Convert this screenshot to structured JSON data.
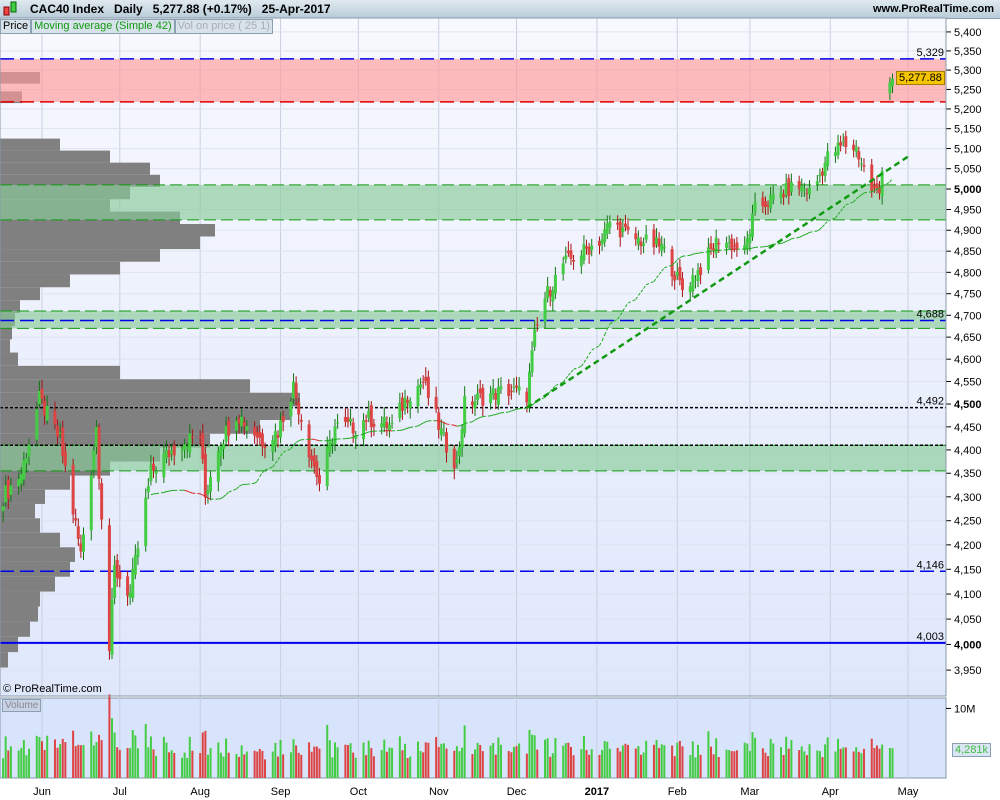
{
  "header": {
    "instrument": "CAC40 Index",
    "period": "Daily",
    "last": "5,277.88 (+0.17%)",
    "date": "25-Apr-2017",
    "site": "www.ProRealTime.com"
  },
  "legend": {
    "price": "Price",
    "ma": "Moving average (Simple 42)",
    "vop": "Vol on price ( 25 1)"
  },
  "copyright": "© ProRealTime.com",
  "volume_label": "Volume",
  "chart_data": {
    "type": "candlestick",
    "scale": "log",
    "ylim": [
      3900,
      5420
    ],
    "price_ticks": [
      3950,
      4000,
      4050,
      4100,
      4150,
      4200,
      4250,
      4300,
      4350,
      4400,
      4450,
      4500,
      4550,
      4600,
      4650,
      4700,
      4750,
      4800,
      4850,
      4900,
      4950,
      5000,
      5050,
      5100,
      5150,
      5200,
      5250,
      5300,
      5350,
      5400
    ],
    "price_tick_labels": [
      "3,950",
      "4,000",
      "4,050",
      "4,100",
      "4,150",
      "4,200",
      "4,250",
      "4,300",
      "4,350",
      "4,400",
      "4,450",
      "4,500",
      "4,550",
      "4,600",
      "4,650",
      "4,700",
      "4,750",
      "4,800",
      "4,850",
      "4,900",
      "4,950",
      "5,000",
      "5,050",
      "5,100",
      "5,150",
      "5,200",
      "5,250",
      "5,300",
      "5,350",
      "5,400"
    ],
    "x_labels": [
      {
        "date": "2016-06-01",
        "label": "Jun"
      },
      {
        "date": "2016-07-01",
        "label": "Jul"
      },
      {
        "date": "2016-08-01",
        "label": "Aug"
      },
      {
        "date": "2016-09-01",
        "label": "Sep"
      },
      {
        "date": "2016-10-01",
        "label": "Oct"
      },
      {
        "date": "2016-11-01",
        "label": "Nov"
      },
      {
        "date": "2016-12-01",
        "label": "Dec"
      },
      {
        "date": "2017-01-01",
        "label": "2017"
      },
      {
        "date": "2017-02-01",
        "label": "Feb"
      },
      {
        "date": "2017-03-01",
        "label": "Mar"
      },
      {
        "date": "2017-04-01",
        "label": "Apr"
      },
      {
        "date": "2017-05-01",
        "label": "May"
      }
    ],
    "close_keypoints": [
      [
        "2016-05-17",
        4300
      ],
      [
        "2016-05-24",
        4350
      ],
      [
        "2016-05-31",
        4510
      ],
      [
        "2016-06-08",
        4420
      ],
      [
        "2016-06-12",
        4300
      ],
      [
        "2016-06-16",
        4180
      ],
      [
        "2016-06-22",
        4450
      ],
      [
        "2016-06-27",
        3990
      ],
      [
        "2016-06-29",
        4150
      ],
      [
        "2016-07-05",
        4100
      ],
      [
        "2016-07-13",
        4350
      ],
      [
        "2016-07-17",
        4380
      ],
      [
        "2016-07-26",
        4420
      ],
      [
        "2016-08-01",
        4430
      ],
      [
        "2016-08-03",
        4300
      ],
      [
        "2016-08-07",
        4400
      ],
      [
        "2016-08-15",
        4480
      ],
      [
        "2016-08-25",
        4420
      ],
      [
        "2016-08-31",
        4440
      ],
      [
        "2016-09-06",
        4540
      ],
      [
        "2016-09-12",
        4400
      ],
      [
        "2016-09-16",
        4330
      ],
      [
        "2016-09-22",
        4450
      ],
      [
        "2016-09-30",
        4450
      ],
      [
        "2016-10-04",
        4470
      ],
      [
        "2016-10-14",
        4450
      ],
      [
        "2016-10-20",
        4520
      ],
      [
        "2016-10-26",
        4550
      ],
      [
        "2016-11-03",
        4420
      ],
      [
        "2016-11-08",
        4370
      ],
      [
        "2016-11-11",
        4500
      ],
      [
        "2016-11-20",
        4520
      ],
      [
        "2016-11-28",
        4530
      ],
      [
        "2016-12-05",
        4520
      ],
      [
        "2016-12-08",
        4650
      ],
      [
        "2016-12-12",
        4740
      ],
      [
        "2016-12-19",
        4820
      ],
      [
        "2016-12-27",
        4850
      ],
      [
        "2017-01-03",
        4880
      ],
      [
        "2017-01-06",
        4920
      ],
      [
        "2017-01-15",
        4880
      ],
      [
        "2017-01-26",
        4860
      ],
      [
        "2017-02-03",
        4760
      ],
      [
        "2017-02-10",
        4810
      ],
      [
        "2017-02-17",
        4880
      ],
      [
        "2017-02-27",
        4850
      ],
      [
        "2017-03-03",
        4950
      ],
      [
        "2017-03-11",
        4980
      ],
      [
        "2017-03-19",
        5010
      ],
      [
        "2017-03-25",
        4990
      ],
      [
        "2017-03-31",
        5080
      ],
      [
        "2017-04-06",
        5110
      ],
      [
        "2017-04-11",
        5100
      ],
      [
        "2017-04-17",
        5000
      ],
      [
        "2017-04-20",
        4990
      ],
      [
        "2017-04-24",
        5268
      ],
      [
        "2017-04-25",
        5277.88
      ]
    ],
    "moving_average": {
      "type": "Simple",
      "period": 42,
      "up_color": "#22aa22",
      "down_color": "#dd2222"
    },
    "levels": [
      {
        "price": 5329,
        "label": "5,329",
        "color": "#0000ee",
        "style": "dashed"
      },
      {
        "price": 5218,
        "label": "",
        "color": "#dd0000",
        "style": "dashed"
      },
      {
        "price": 4688,
        "label": "4,688",
        "color": "#0000ee",
        "style": "dashed"
      },
      {
        "price": 4492,
        "label": "4,492",
        "color": "#000000",
        "style": "dashed"
      },
      {
        "price": 4410,
        "label": "",
        "color": "#000000",
        "style": "dashed"
      },
      {
        "price": 4146,
        "label": "4,146",
        "color": "#0000ee",
        "style": "dashed"
      },
      {
        "price": 4003,
        "label": "4,003",
        "color": "#0000ee",
        "style": "solid"
      }
    ],
    "zones": [
      {
        "from": 5218,
        "to": 5329,
        "color": "#ff9999"
      },
      {
        "from": 4925,
        "to": 5010,
        "color": "#88cc99"
      },
      {
        "from": 4670,
        "to": 4710,
        "color": "#88cc99"
      },
      {
        "from": 4355,
        "to": 4410,
        "color": "#88cc99"
      }
    ],
    "trendline": {
      "from": [
        "2016-12-05",
        4492
      ],
      "to": [
        "2017-05-01",
        5080
      ],
      "color": "#119911"
    },
    "volume_profile": [
      [
        5280,
        40
      ],
      [
        5230,
        22
      ],
      [
        5110,
        60
      ],
      [
        5080,
        110
      ],
      [
        5050,
        150
      ],
      [
        5020,
        160
      ],
      [
        4990,
        130
      ],
      [
        4960,
        110
      ],
      [
        4930,
        180
      ],
      [
        4900,
        215
      ],
      [
        4870,
        200
      ],
      [
        4840,
        160
      ],
      [
        4810,
        120
      ],
      [
        4780,
        70
      ],
      [
        4750,
        40
      ],
      [
        4720,
        20
      ],
      [
        4690,
        15
      ],
      [
        4660,
        12
      ],
      [
        4630,
        10
      ],
      [
        4600,
        18
      ],
      [
        4570,
        120
      ],
      [
        4540,
        250
      ],
      [
        4510,
        300
      ],
      [
        4480,
        290
      ],
      [
        4450,
        260
      ],
      [
        4420,
        210
      ],
      [
        4390,
        160
      ],
      [
        4360,
        110
      ],
      [
        4330,
        70
      ],
      [
        4300,
        45
      ],
      [
        4270,
        35
      ],
      [
        4240,
        40
      ],
      [
        4210,
        60
      ],
      [
        4180,
        75
      ],
      [
        4150,
        70
      ],
      [
        4120,
        55
      ],
      [
        4090,
        40
      ],
      [
        4060,
        38
      ],
      [
        4030,
        30
      ],
      [
        4000,
        18
      ],
      [
        3970,
        8
      ]
    ],
    "volume": {
      "ticks": [
        "10M"
      ],
      "last": "4,281k",
      "ylim_millions": [
        0,
        11.5
      ]
    }
  },
  "colors": {
    "up": "#44cc44",
    "down": "#dd4444",
    "bg": "#e8eefa"
  }
}
